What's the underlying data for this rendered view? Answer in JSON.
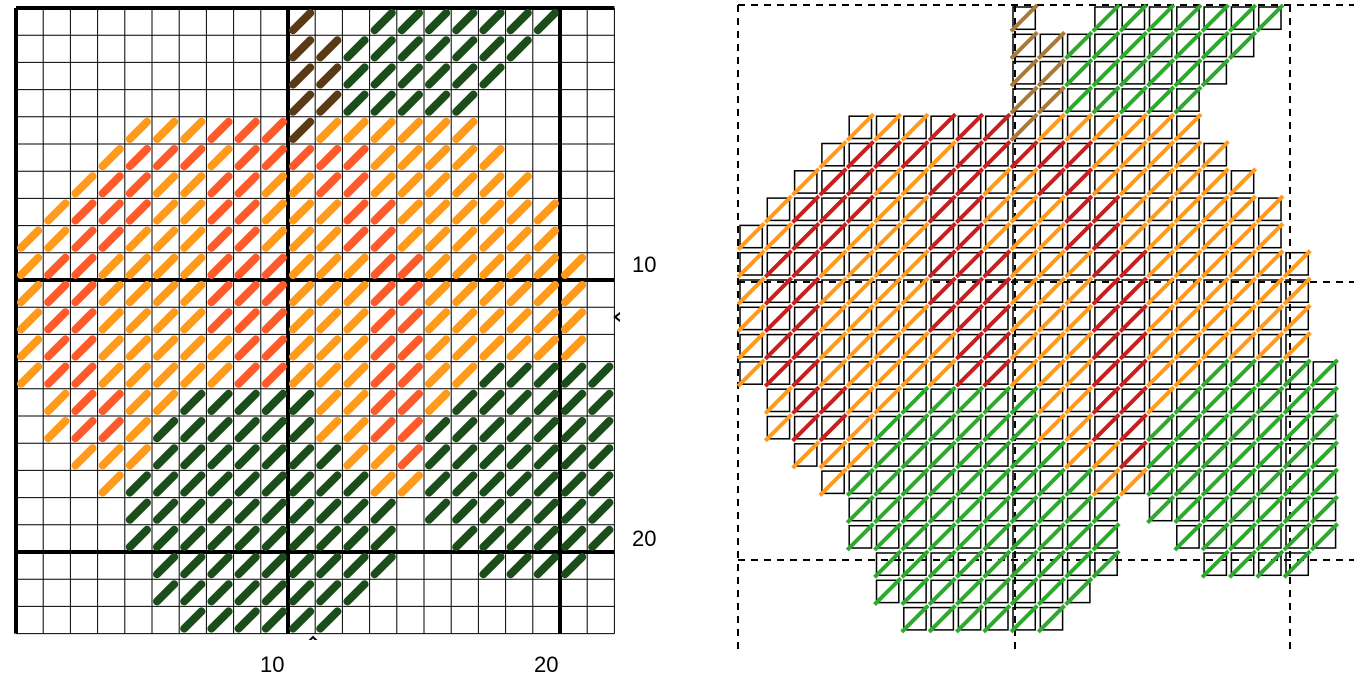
{
  "left_chart": {
    "x_axis_labels": [
      "10",
      "20"
    ],
    "y_axis_labels": [
      "10",
      "20"
    ],
    "center_markers": [
      "x-center-triangle",
      "y-center-triangle"
    ]
  },
  "right_chart": {
    "description_free": true
  },
  "colors": {
    "orange": "#ff9a1a",
    "red": "#ff5a2a",
    "dark_green": "#1a4d1a",
    "brown": "#5a3a14",
    "right_orange": "#ff9a1a",
    "right_red": "#c81e1e",
    "right_green": "#2daa2d",
    "right_brown": "#a87a3a"
  }
}
